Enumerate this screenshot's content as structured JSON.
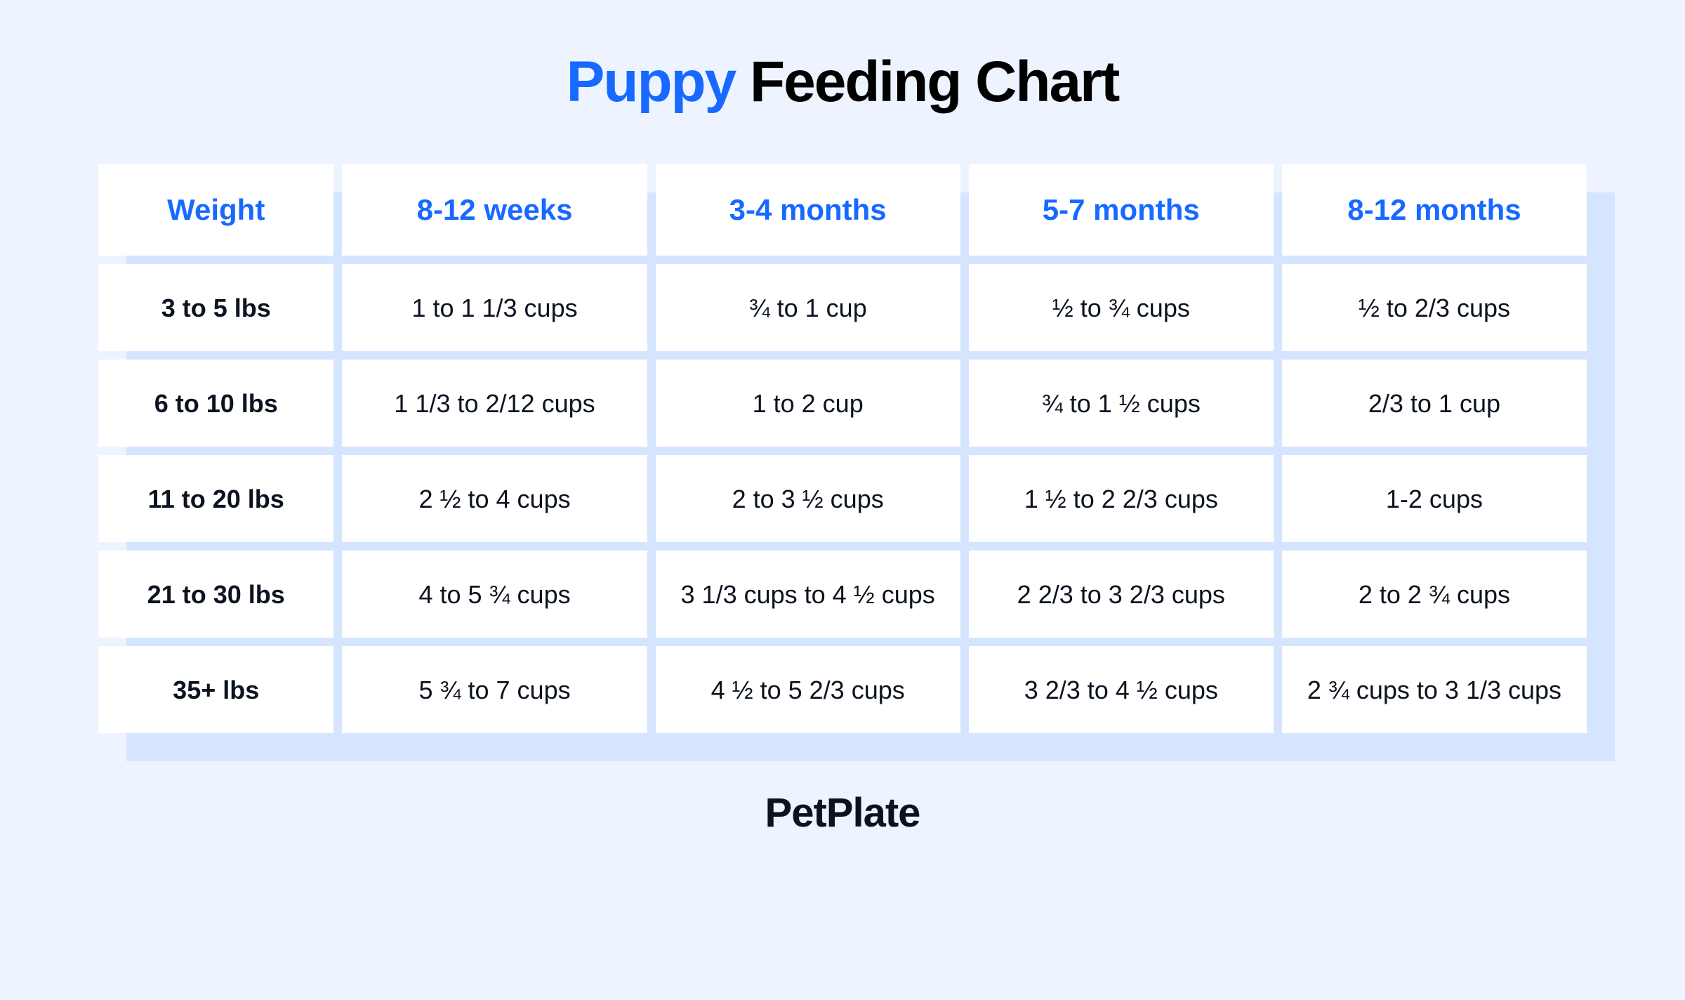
{
  "colors": {
    "page_bg": "#edf3ff",
    "shadow_bg": "#d6e5ff",
    "cell_bg": "#ffffff",
    "accent": "#1769ff",
    "text_dark": "#0b1320",
    "title_black": "#000000"
  },
  "title": {
    "accent_word": "Puppy",
    "rest": "Feeding Chart"
  },
  "brand": "PetPlate",
  "table": {
    "columns": [
      "Weight",
      "8-12 weeks",
      "3-4 months",
      "5-7 months",
      "8-12 months"
    ],
    "rows": [
      {
        "label": "3 to 5 lbs",
        "cells": [
          "1 to 1 1/3 cups",
          "¾ to 1 cup",
          "½ to ¾ cups",
          "½ to 2/3 cups"
        ]
      },
      {
        "label": "6 to 10 lbs",
        "cells": [
          "1 1/3 to 2/12 cups",
          "1 to 2 cup",
          "¾ to 1 ½ cups",
          "2/3 to 1 cup"
        ]
      },
      {
        "label": "11 to 20 lbs",
        "cells": [
          "2 ½ to 4 cups",
          "2 to 3 ½ cups",
          "1 ½ to 2 2/3 cups",
          "1-2 cups"
        ]
      },
      {
        "label": "21 to 30 lbs",
        "cells": [
          "4 to 5 ¾ cups",
          "3 1/3 cups to 4 ½ cups",
          "2 2/3 to 3 2/3 cups",
          "2 to 2 ¾ cups"
        ]
      },
      {
        "label": "35+ lbs",
        "cells": [
          "5 ¾ to 7 cups",
          "4 ½ to 5 2/3 cups",
          "3 2/3 to 4 ½ cups",
          "2 ¾ cups to 3 1/3 cups"
        ]
      }
    ]
  }
}
